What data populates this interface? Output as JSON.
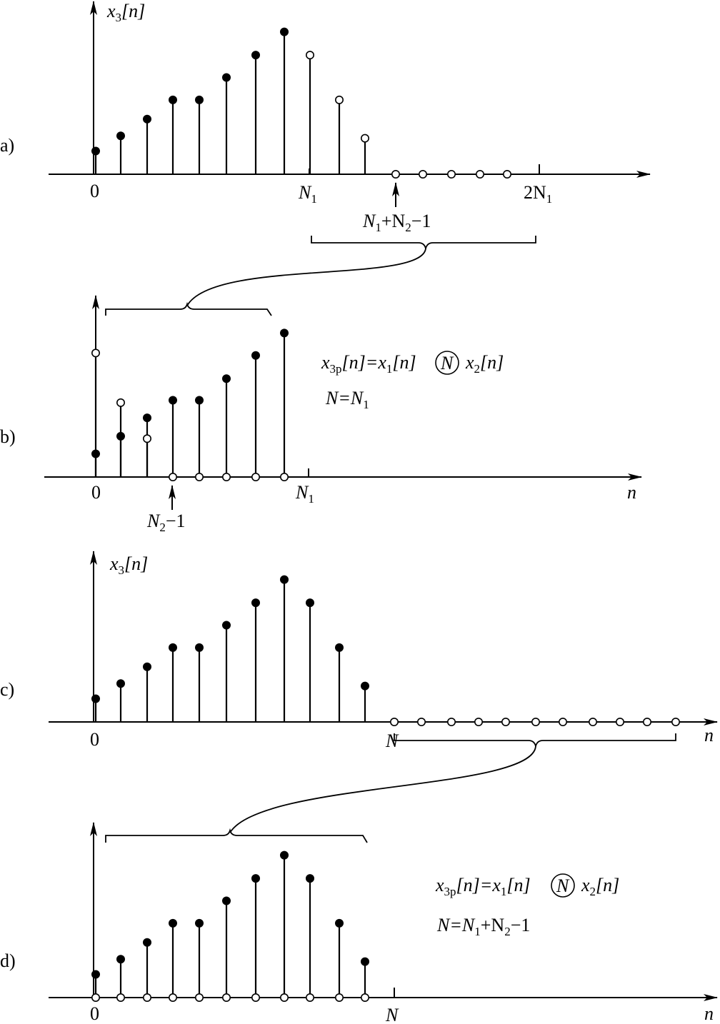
{
  "panels": [
    {
      "label": "a)",
      "ylabel": "x",
      "ylabel_sub": "3",
      "ylabel_arg": "[n]",
      "ticks": {
        "zero": "0",
        "n1": "N",
        "n1_sub": "1",
        "two_n1_pre": "2N",
        "two_n1_sub": "1"
      },
      "marker": {
        "pre": "N",
        "sub1": "1",
        "mid": "+N",
        "sub2": "2",
        "post": "−1"
      },
      "filled": [
        0.29,
        0.48,
        0.69,
        0.93,
        0.93,
        1.21,
        1.49,
        1.78
      ],
      "open": [
        1.49,
        0.93,
        0.45
      ],
      "tail_open_count": 5
    },
    {
      "label": "b)",
      "xlabel": "n",
      "ticks": {
        "zero": "0",
        "n1": "N",
        "n1_sub": "1"
      },
      "marker": {
        "pre": "N",
        "sub": "2",
        "post": "−1"
      },
      "equation": {
        "x": "x",
        "x_sub": "3p",
        "mid": "[n]=x",
        "s1": "1",
        "mid2": "[n]",
        "op": "N",
        "x2": "x",
        "s2": "2",
        "end": "[n]"
      },
      "period": {
        "pre": "N=N",
        "sub": "1"
      },
      "filled": [
        0.29,
        0.51,
        0.74,
        0.96,
        0.96,
        1.23,
        1.52,
        1.8
      ],
      "open": [
        1.55,
        0.93,
        0.48
      ]
    },
    {
      "label": "c)",
      "ylabel": "x",
      "ylabel_sub": "3",
      "ylabel_arg": "[n]",
      "xlabel": "n",
      "ticks": {
        "zero": "0",
        "n": "N"
      },
      "filled": [
        0.29,
        0.48,
        0.69,
        0.93,
        0.93,
        1.21,
        1.49,
        1.78,
        1.49,
        0.93,
        0.45
      ],
      "tail_open_count": 11
    },
    {
      "label": "d)",
      "xlabel": "n",
      "ticks": {
        "zero": "0",
        "n": "N"
      },
      "equation": {
        "x": "x",
        "x_sub": "3p",
        "mid": "[n]=x",
        "s1": "1",
        "mid2": "[n]",
        "op": "N",
        "x2": "x",
        "s2": "2",
        "end": "[n]"
      },
      "period": {
        "pre": "N=N",
        "sub1": "1",
        "mid": "+N",
        "sub2": "2",
        "post": "−1"
      },
      "filled": [
        0.29,
        0.48,
        0.69,
        0.93,
        0.93,
        1.21,
        1.49,
        1.78,
        1.49,
        0.93,
        0.45
      ],
      "open_on_axis_count": 11
    }
  ]
}
